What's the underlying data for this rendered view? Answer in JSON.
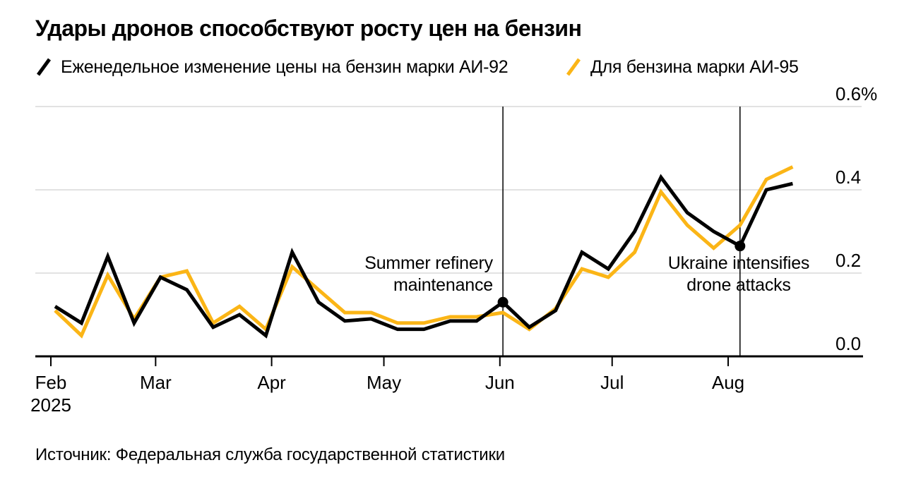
{
  "title": "Удары дронов способствуют росту цен на бензин",
  "legend": [
    {
      "label": "Еженедельное изменение цены на бензин марки АИ-92",
      "color": "#000000"
    },
    {
      "label": "Для бензина марки АИ-95",
      "color": "#FBB516"
    }
  ],
  "source": "Источник: Федеральная служба государственной статистики",
  "colors": {
    "ai92_line": "#000000",
    "ai95_line": "#FBB516",
    "gridline": "#D8D8D8",
    "axis": "#000000"
  },
  "chart_data": {
    "type": "line",
    "x_unit": "week",
    "x_ticks": [
      "Feb",
      "Mar",
      "Apr",
      "May",
      "Jun",
      "Jul",
      "Aug"
    ],
    "x_year_label": "2025",
    "y_ticks": [
      {
        "label": "0.6%",
        "value": 0.6
      },
      {
        "label": "0.4",
        "value": 0.4
      },
      {
        "label": "0.2",
        "value": 0.2
      },
      {
        "label": "0.0",
        "value": 0.0
      }
    ],
    "ylim": [
      0,
      0.6
    ],
    "grid": true,
    "legend_position": "top",
    "series": [
      {
        "id": "ai92",
        "name": "АИ-92",
        "color": "#000000",
        "values": [
          0.12,
          0.08,
          0.24,
          0.08,
          0.19,
          0.16,
          0.07,
          0.1,
          0.05,
          0.25,
          0.13,
          0.085,
          0.09,
          0.065,
          0.065,
          0.085,
          0.085,
          0.13,
          0.07,
          0.11,
          0.25,
          0.21,
          0.3,
          0.43,
          0.345,
          0.3,
          0.265,
          0.4,
          0.415
        ]
      },
      {
        "id": "ai95",
        "name": "АИ-95",
        "color": "#FBB516",
        "values": [
          0.11,
          0.05,
          0.195,
          0.09,
          0.19,
          0.205,
          0.08,
          0.12,
          0.065,
          0.215,
          0.16,
          0.105,
          0.105,
          0.08,
          0.08,
          0.095,
          0.095,
          0.105,
          0.065,
          0.115,
          0.21,
          0.19,
          0.25,
          0.395,
          0.315,
          0.26,
          0.315,
          0.425,
          0.455
        ]
      }
    ],
    "annotations": [
      {
        "lines": [
          "Summer refinery",
          "maintenance"
        ],
        "point_index": 17,
        "marker_series": "ai92",
        "align": "right"
      },
      {
        "lines": [
          "Ukraine intensifies",
          "drone attacks"
        ],
        "point_index": 26,
        "marker_series": "ai92",
        "align": "center"
      }
    ]
  }
}
